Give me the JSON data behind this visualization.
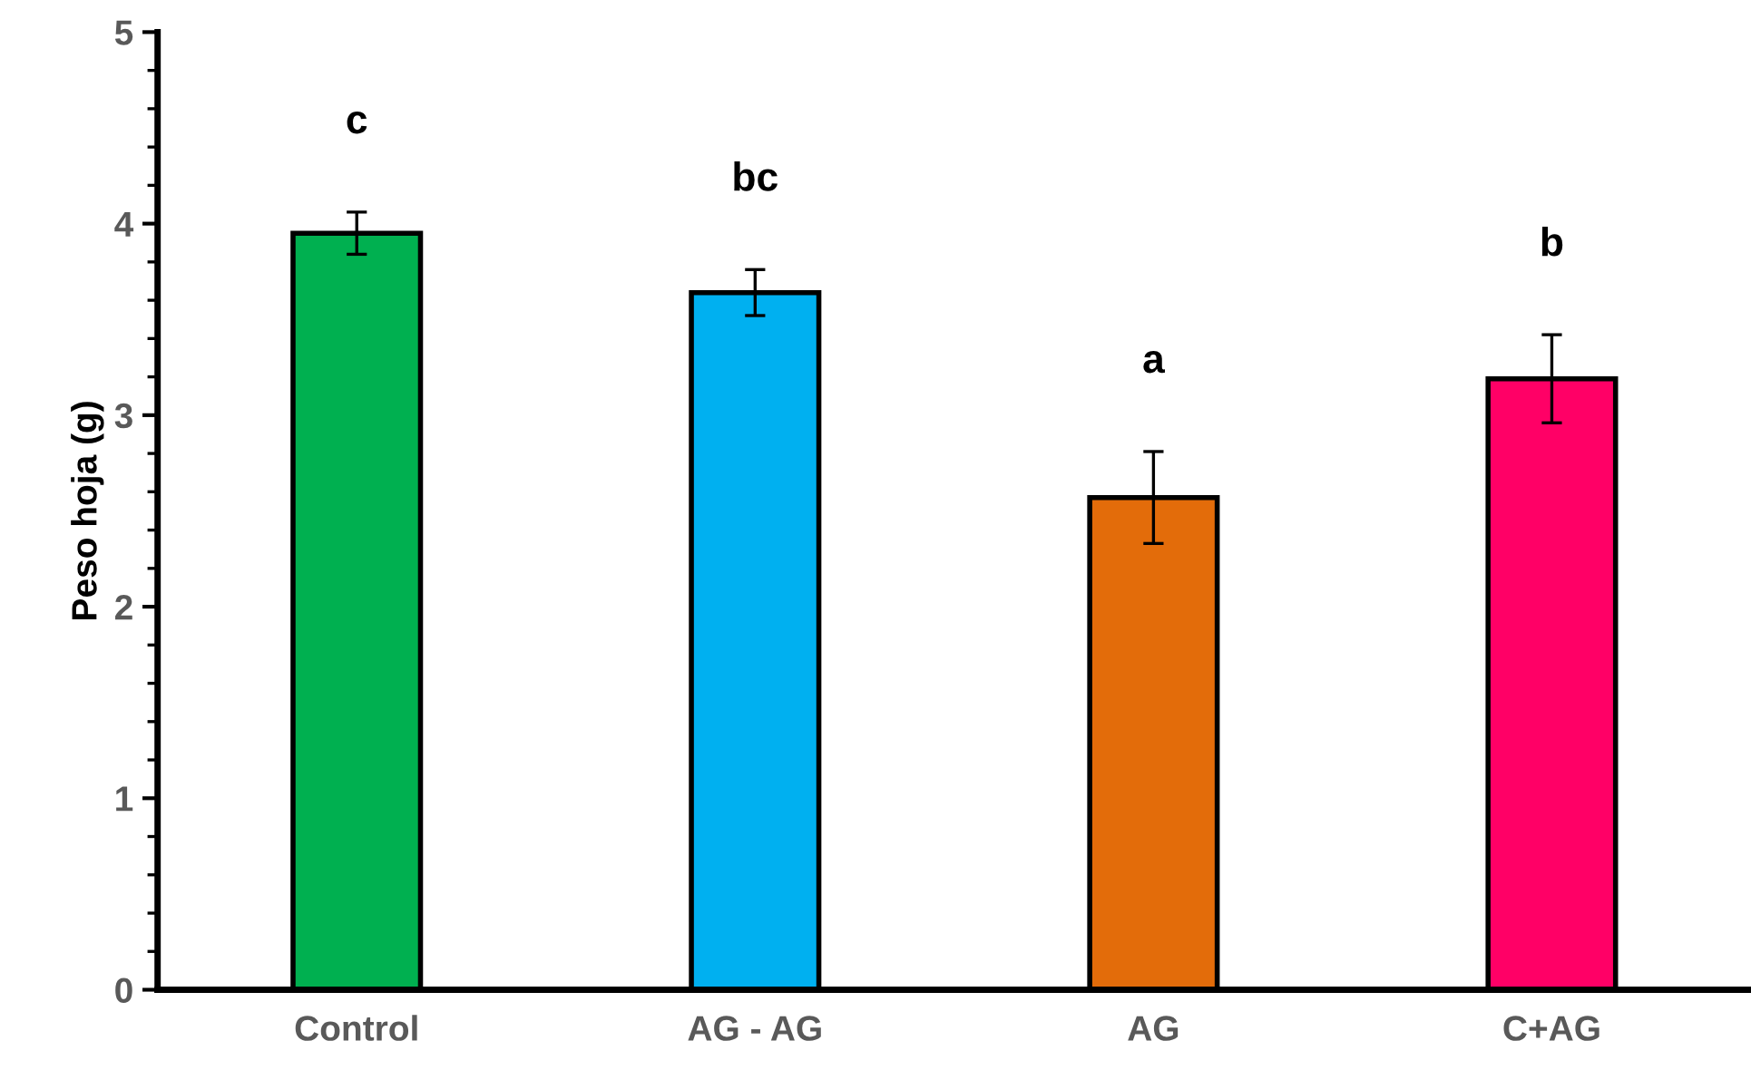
{
  "chart_data": {
    "type": "bar",
    "ylabel": "Peso hoja (g)",
    "categories": [
      "Control",
      "AG - AG",
      "AG",
      "C+AG"
    ],
    "values": [
      3.95,
      3.64,
      2.57,
      3.19
    ],
    "errors": [
      0.11,
      0.12,
      0.24,
      0.23
    ],
    "colors": [
      "#00b050",
      "#00b0f0",
      "#e36c0a",
      "#ff0066"
    ],
    "ylim": [
      0,
      5
    ],
    "yticks": [
      0,
      1,
      2,
      3,
      4,
      5
    ],
    "grid": false,
    "legend": false,
    "annotations": [
      "c",
      "bc",
      "a",
      "b"
    ]
  }
}
